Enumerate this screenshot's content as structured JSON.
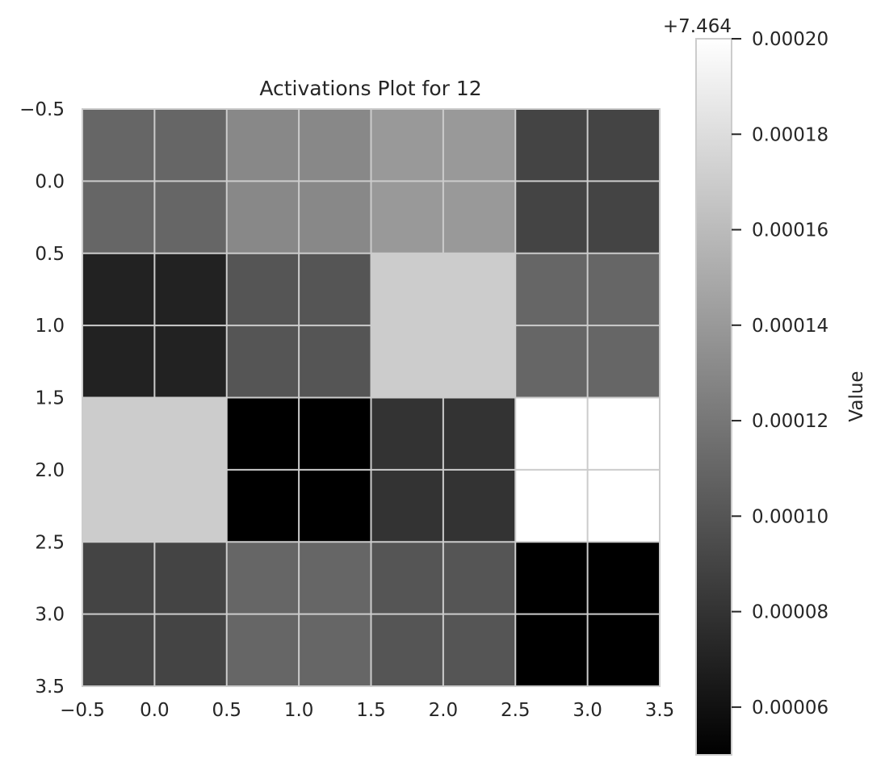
{
  "chart_data": {
    "type": "heatmap",
    "title": "Activations Plot for 12",
    "xlabel": "",
    "ylabel": "",
    "colormap": "gray",
    "grid": true,
    "xlim": [
      -0.5,
      3.5
    ],
    "ylim": [
      3.5,
      -0.5
    ],
    "x_ticks": [
      "−0.5",
      "0.0",
      "0.5",
      "1.0",
      "1.5",
      "2.0",
      "2.5",
      "3.0",
      "3.5"
    ],
    "y_ticks": [
      "−0.5",
      "0.0",
      "0.5",
      "1.0",
      "1.5",
      "2.0",
      "2.5",
      "3.0",
      "3.5"
    ],
    "values": [
      [
        7.46411,
        7.46413,
        7.46414,
        7.46409
      ],
      [
        7.46407,
        7.4641,
        7.46417,
        7.46411
      ],
      [
        7.46417,
        7.46405,
        7.46408,
        7.4642
      ],
      [
        7.46409,
        7.46411,
        7.4641,
        7.46405
      ]
    ],
    "colorbar": {
      "label": "Value",
      "offset_text": "+7.464",
      "vmin": 7.46405,
      "vmax": 7.4642,
      "ticks": [
        6e-05,
        8e-05,
        0.0001,
        0.00012,
        0.00014,
        0.00016,
        0.00018,
        0.0002
      ],
      "tick_labels": [
        "0.00006",
        "0.00008",
        "0.00010",
        "0.00012",
        "0.00014",
        "0.00016",
        "0.00018",
        "0.00020"
      ]
    }
  }
}
